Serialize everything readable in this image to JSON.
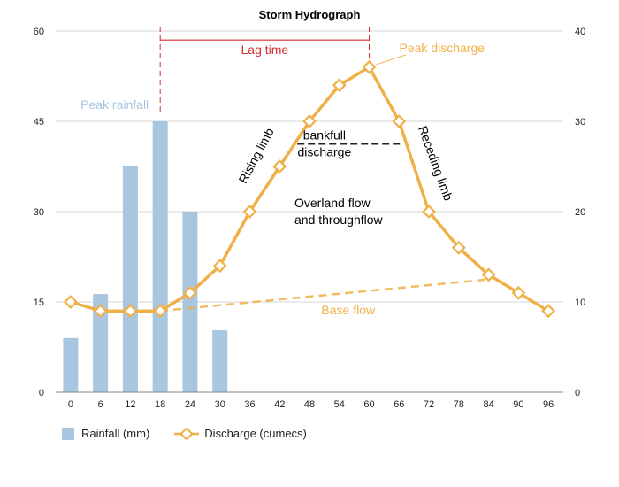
{
  "chart_data": {
    "type": "bar-line-combo",
    "title": "Storm Hydrograph",
    "categories": [
      "0",
      "6",
      "12",
      "18",
      "24",
      "30",
      "36",
      "42",
      "48",
      "54",
      "60",
      "66",
      "72",
      "78",
      "84",
      "90",
      "96"
    ],
    "left_axis": {
      "ylim": [
        0,
        60
      ],
      "ticks": [
        "0",
        "15",
        "30",
        "45",
        "60"
      ]
    },
    "right_axis": {
      "ylim": [
        0,
        40
      ],
      "ticks": [
        "0",
        "10",
        "20",
        "30",
        "40"
      ]
    },
    "grid": true,
    "series": [
      {
        "name": "Rainfall (mm)",
        "type": "bar",
        "axis": "left",
        "color": "#a9c6e0",
        "values": [
          9,
          16.3,
          37.5,
          45,
          30,
          10.3,
          null,
          null,
          null,
          null,
          null,
          null,
          null,
          null,
          null,
          null,
          null
        ]
      },
      {
        "name": "Discharge (cumecs)",
        "type": "line",
        "axis": "right",
        "color": "#f0b048",
        "values": [
          10,
          9,
          9,
          9,
          11,
          14,
          20,
          25,
          30,
          34,
          36,
          30,
          20,
          16,
          13,
          11,
          9
        ]
      }
    ],
    "base_flow": {
      "label": "Base flow",
      "from": {
        "x": "18",
        "y": 9
      },
      "to": {
        "x": "84",
        "y": 12.5
      }
    },
    "annotations": {
      "lag_time": {
        "label": "Lag time",
        "from_x": "18",
        "to_x": "60",
        "level": 39,
        "color": "#d22f2f"
      },
      "peak_rainfall": {
        "label": "Peak rainfall",
        "color": "#a9c6e0"
      },
      "peak_discharge": {
        "label": "Peak discharge",
        "color": "#f0b048"
      },
      "rising_limb": "Rising limb",
      "receding_limb": "Receding limb",
      "bankfull": {
        "line1": "bankfull",
        "line2": "discharge",
        "level": 27.5
      },
      "overland": {
        "line1": "Overland flow",
        "line2": "and throughflow"
      }
    },
    "legend": [
      {
        "label": "Rainfall (mm)"
      },
      {
        "label": "Discharge (cumecs)"
      }
    ]
  }
}
